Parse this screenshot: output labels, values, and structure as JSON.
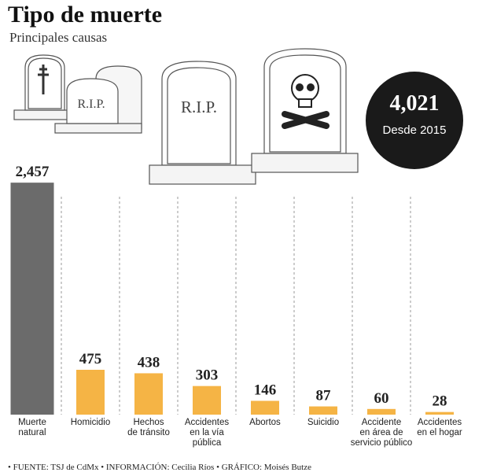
{
  "chart_data": {
    "type": "bar",
    "title": "Tipo de muerte",
    "subtitle": "Principales causas",
    "categories": [
      "Muerte\nnatural",
      "Homicidio",
      "Hechos\nde tránsito",
      "Accidentes\nen la vía\npública",
      "Abortos",
      "Suicidio",
      "Accidente\nen área de\nservicio público",
      "Accidentes\nen el hogar"
    ],
    "values": [
      2457,
      475,
      438,
      303,
      146,
      87,
      60,
      28
    ],
    "value_labels": [
      "2,457",
      "475",
      "438",
      "303",
      "146",
      "87",
      "60",
      "28"
    ],
    "colors": [
      "#6b6b6b",
      "#f5b445",
      "#f5b445",
      "#f5b445",
      "#f5b445",
      "#f5b445",
      "#f5b445",
      "#f5b445"
    ],
    "total_label": "4,021",
    "total_caption": "Desde 2015",
    "tombstone_text": "R.I.P.",
    "footer": "• FUENTE: TSJ de CdMx • INFORMACIÓN: Cecilia Ríos • GRÁFICO: Moisés Butze"
  }
}
